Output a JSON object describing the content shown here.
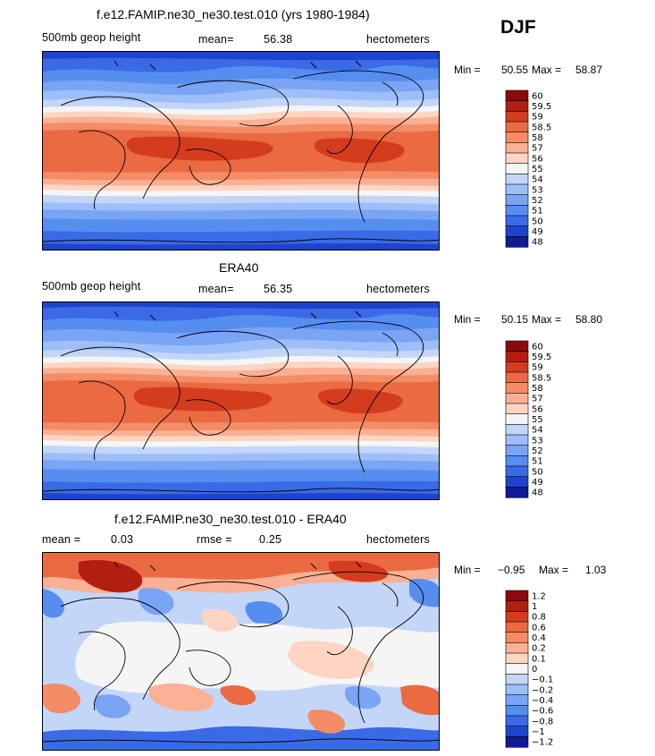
{
  "season": "DJF",
  "chart_data": [
    {
      "type": "heatmap",
      "title": "f.e12.FAMIP.ne30_ne30.test.010 (yrs 1980-1984)",
      "variable": "500mb geop height",
      "stat_label": "mean=",
      "stat_value": "56.38",
      "units": "hectometers",
      "min_label": "Min =",
      "min_value": "50.55",
      "max_label": "Max =",
      "max_value": "58.87",
      "levels": [
        60,
        59.5,
        59,
        58.5,
        58,
        57,
        56,
        55,
        54,
        53,
        52,
        51,
        50,
        49,
        48
      ],
      "level_labels": [
        "60",
        "59.5",
        "59",
        "58.5",
        "58",
        "57",
        "56",
        "55",
        "54",
        "53",
        "52",
        "51",
        "50",
        "49",
        "48"
      ],
      "colors": [
        "#8c0a0a",
        "#b21e10",
        "#d43c1e",
        "#ea6a42",
        "#f48c66",
        "#fab094",
        "#fdd5c2",
        "#f5f5f5",
        "#c3d6f8",
        "#9dbef8",
        "#7aa4f4",
        "#568ef0",
        "#3a6ae6",
        "#1f44cc",
        "#101a96"
      ]
    },
    {
      "type": "heatmap",
      "title": "ERA40",
      "variable": "500mb geop height",
      "stat_label": "mean=",
      "stat_value": "56.35",
      "units": "hectometers",
      "min_label": "Min =",
      "min_value": "50.15",
      "max_label": "Max =",
      "max_value": "58.80",
      "levels": [
        60,
        59.5,
        59,
        58.5,
        58,
        57,
        56,
        55,
        54,
        53,
        52,
        51,
        50,
        49,
        48
      ],
      "level_labels": [
        "60",
        "59.5",
        "59",
        "58.5",
        "58",
        "57",
        "56",
        "55",
        "54",
        "53",
        "52",
        "51",
        "50",
        "49",
        "48"
      ],
      "colors": [
        "#8c0a0a",
        "#b21e10",
        "#d43c1e",
        "#ea6a42",
        "#f48c66",
        "#fab094",
        "#fdd5c2",
        "#f5f5f5",
        "#c3d6f8",
        "#9dbef8",
        "#7aa4f4",
        "#568ef0",
        "#3a6ae6",
        "#1f44cc",
        "#101a96"
      ]
    },
    {
      "type": "heatmap",
      "title": "f.e12.FAMIP.ne30_ne30.test.010 - ERA40",
      "stat_label": "mean =",
      "stat_value": "0.03",
      "stat2_label": "rmse =",
      "stat2_value": "0.25",
      "units": "hectometers",
      "min_label": "Min =",
      "min_value": "−0.95",
      "max_label": "Max =",
      "max_value": "1.03",
      "levels": [
        1.2,
        1,
        0.8,
        0.6,
        0.4,
        0.2,
        0.1,
        0,
        -0.1,
        -0.2,
        -0.4,
        -0.6,
        -0.8,
        -1,
        -1.2
      ],
      "level_labels": [
        "1.2",
        "1",
        "0.8",
        "0.6",
        "0.4",
        "0.2",
        "0.1",
        "0",
        "−0.1",
        "−0.2",
        "−0.4",
        "−0.6",
        "−0.8",
        "−1",
        "−1.2"
      ],
      "colors": [
        "#8c0a0a",
        "#b21e10",
        "#d43c1e",
        "#ea6a42",
        "#f48c66",
        "#fab094",
        "#fdd5c2",
        "#f5f5f5",
        "#c3d6f8",
        "#9dbef8",
        "#7aa4f4",
        "#568ef0",
        "#3a6ae6",
        "#1f44cc",
        "#101a96"
      ]
    }
  ]
}
